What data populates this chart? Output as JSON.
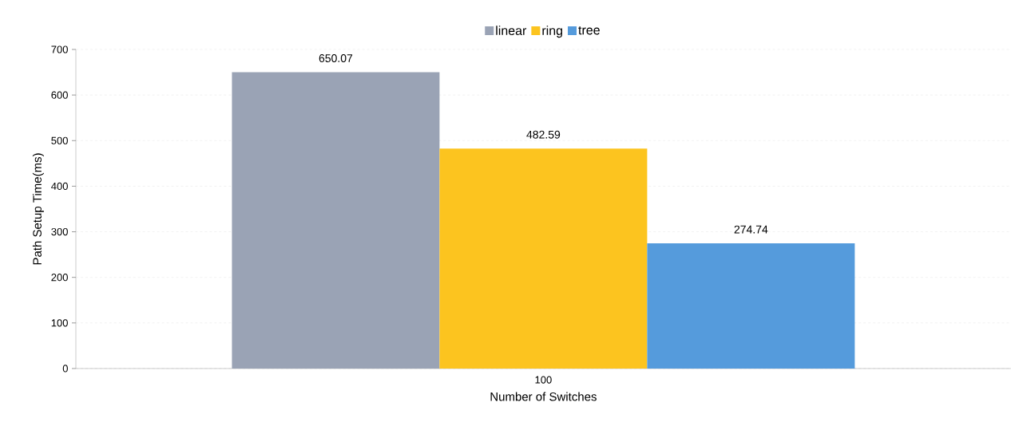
{
  "chart_data": {
    "type": "bar",
    "xlabel": "Number of Switches",
    "ylabel": "Path Setup Time(ms)",
    "categories": [
      "100"
    ],
    "series": [
      {
        "name": "linear",
        "color": "#9aa3b5",
        "values": [
          650.07
        ]
      },
      {
        "name": "ring",
        "color": "#fcc41f",
        "values": [
          482.59
        ]
      },
      {
        "name": "tree",
        "color": "#559bdc",
        "values": [
          274.74
        ]
      }
    ],
    "ylim": [
      0,
      700
    ],
    "yticks": [
      0,
      100,
      200,
      300,
      400,
      500,
      600,
      700
    ],
    "grid": "y",
    "legend": "top",
    "data_labels": true
  }
}
